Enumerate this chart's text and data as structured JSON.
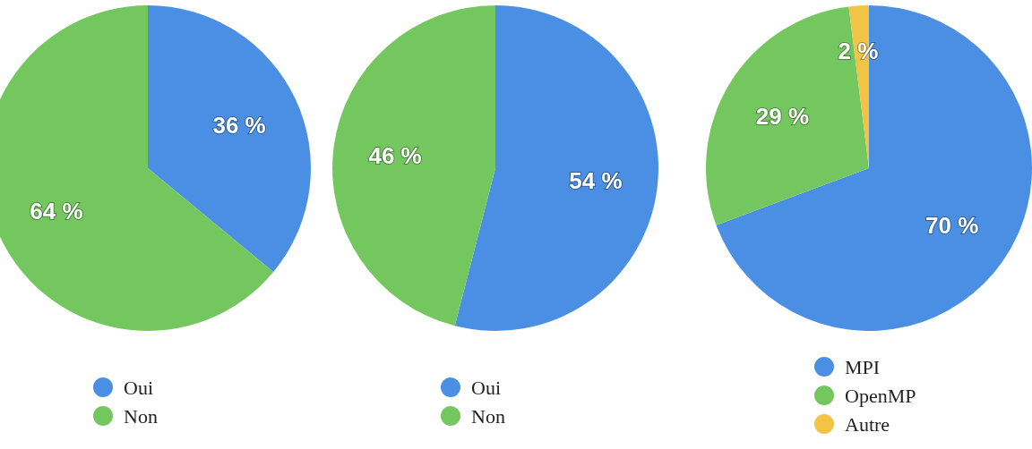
{
  "chart_data": [
    {
      "type": "pie",
      "categories": [
        "Oui",
        "Non"
      ],
      "values": [
        36,
        64
      ],
      "colors": [
        "#4a8fe3",
        "#74c75e"
      ],
      "legend": "bottom",
      "value_labels": [
        "36 %",
        "64 %"
      ]
    },
    {
      "type": "pie",
      "categories": [
        "Oui",
        "Non"
      ],
      "values": [
        54,
        46
      ],
      "colors": [
        "#4a8fe3",
        "#74c75e"
      ],
      "legend": "bottom",
      "value_labels": [
        "54 %",
        "46 %"
      ]
    },
    {
      "type": "pie",
      "categories": [
        "MPI",
        "OpenMP",
        "Autre"
      ],
      "values": [
        70,
        29,
        2
      ],
      "colors": [
        "#4a8fe3",
        "#74c75e",
        "#f2c344"
      ],
      "legend": "bottom",
      "value_labels": [
        "70 %",
        "29 %",
        "2 %"
      ]
    }
  ]
}
